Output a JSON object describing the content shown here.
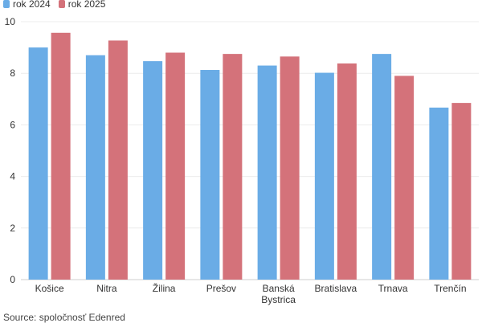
{
  "chart_data": {
    "type": "bar",
    "categories": [
      "Košice",
      "Nitra",
      "Žilina",
      "Prešov",
      "Banská Bystrica",
      "Bratislava",
      "Trnava",
      "Trenčín"
    ],
    "category_lines": [
      [
        "Košice"
      ],
      [
        "Nitra"
      ],
      [
        "Žilina"
      ],
      [
        "Prešov"
      ],
      [
        "Banská",
        "Bystrica"
      ],
      [
        "Bratislava"
      ],
      [
        "Trnava"
      ],
      [
        "Trenčín"
      ]
    ],
    "series": [
      {
        "name": "rok 2024",
        "color": "#6aace6",
        "values": [
          9.0,
          8.7,
          8.47,
          8.13,
          8.3,
          8.02,
          8.75,
          6.67
        ]
      },
      {
        "name": "rok 2025",
        "color": "#d4727a",
        "values": [
          9.57,
          9.27,
          8.8,
          8.75,
          8.65,
          8.38,
          7.9,
          6.85
        ]
      }
    ],
    "y_ticks": [
      "0",
      "2",
      "4",
      "6",
      "8",
      "10"
    ],
    "ylim": [
      0,
      10
    ],
    "grid": true,
    "legend_position": "top-left"
  },
  "source": "Source: spoločnosť Edenred"
}
